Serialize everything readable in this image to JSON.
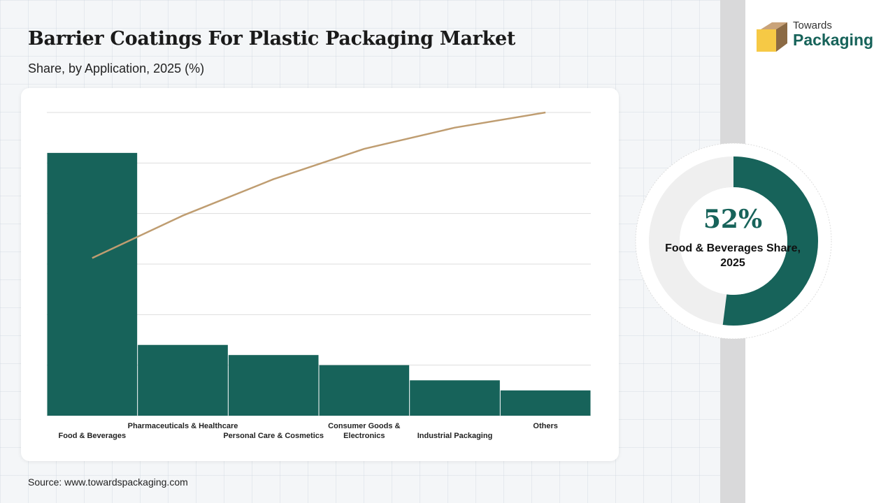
{
  "header": {
    "title": "Barrier Coatings For Plastic Packaging Market",
    "subtitle": "Share, by Application, 2025 (%)"
  },
  "chart_data": {
    "type": "bar",
    "categories": [
      "Food & Beverages",
      "Pharmaceuticals & Healthcare",
      "Personal Care & Cosmetics",
      "Consumer Goods & Electronics",
      "Industrial Packaging",
      "Others"
    ],
    "values": [
      52,
      14,
      12,
      10,
      7,
      5
    ],
    "cumulative_line": [
      52,
      66,
      78,
      88,
      95,
      100
    ],
    "ylim": [
      0,
      60
    ],
    "grid": true,
    "bar_color": "#17635a",
    "line_color": "#bf9d71"
  },
  "highlight": {
    "percent": "52%",
    "value": 52,
    "label": "Food & Beverages Share, 2025",
    "color": "#17635a"
  },
  "source": "Source: www.towardspackaging.com",
  "logo": {
    "top": "Towards",
    "bottom": "Packaging"
  }
}
